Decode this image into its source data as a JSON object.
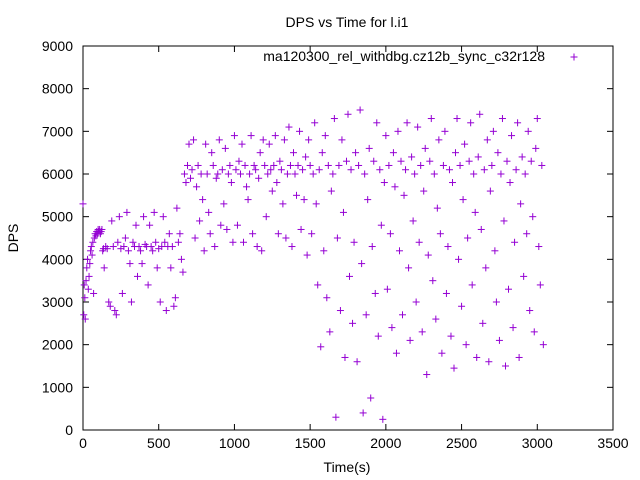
{
  "chart_data": {
    "type": "scatter",
    "title": "DPS vs Time for l.i1",
    "xlabel": "Time(s)",
    "ylabel": "DPS",
    "xlim": [
      0,
      3500
    ],
    "ylim": [
      0,
      9000
    ],
    "x_ticks": [
      0,
      500,
      1000,
      1500,
      2000,
      2500,
      3000,
      3500
    ],
    "y_ticks": [
      0,
      1000,
      2000,
      3000,
      4000,
      5000,
      6000,
      7000,
      8000,
      9000
    ],
    "grid": false,
    "legend_position": "top-right",
    "series_color": "#9400d3",
    "marker": "plus",
    "series": [
      {
        "name": "ma120300_rel_withdbg.cz12b_sync_c32r128",
        "points": [
          [
            0,
            5300
          ],
          [
            5,
            2700
          ],
          [
            8,
            3400
          ],
          [
            12,
            3100
          ],
          [
            15,
            2600
          ],
          [
            20,
            3500
          ],
          [
            25,
            3800
          ],
          [
            30,
            4000
          ],
          [
            35,
            3300
          ],
          [
            40,
            3600
          ],
          [
            45,
            3900
          ],
          [
            50,
            4200
          ],
          [
            55,
            4300
          ],
          [
            60,
            4100
          ],
          [
            65,
            4400
          ],
          [
            70,
            3200
          ],
          [
            75,
            4500
          ],
          [
            80,
            4600
          ],
          [
            85,
            4550
          ],
          [
            90,
            4650
          ],
          [
            95,
            4600
          ],
          [
            100,
            4700
          ],
          [
            105,
            4650
          ],
          [
            110,
            4700
          ],
          [
            115,
            4600
          ],
          [
            120,
            4650
          ],
          [
            125,
            4700
          ],
          [
            130,
            4200
          ],
          [
            135,
            4250
          ],
          [
            140,
            3800
          ],
          [
            150,
            4300
          ],
          [
            160,
            4250
          ],
          [
            170,
            3000
          ],
          [
            180,
            2900
          ],
          [
            190,
            4900
          ],
          [
            200,
            4300
          ],
          [
            210,
            2800
          ],
          [
            220,
            2700
          ],
          [
            230,
            4400
          ],
          [
            240,
            5000
          ],
          [
            250,
            4250
          ],
          [
            260,
            3200
          ],
          [
            270,
            4300
          ],
          [
            280,
            4500
          ],
          [
            290,
            5100
          ],
          [
            300,
            4200
          ],
          [
            310,
            3900
          ],
          [
            320,
            3000
          ],
          [
            330,
            4400
          ],
          [
            340,
            4300
          ],
          [
            350,
            4800
          ],
          [
            360,
            3600
          ],
          [
            370,
            4300
          ],
          [
            380,
            4200
          ],
          [
            390,
            3900
          ],
          [
            400,
            5000
          ],
          [
            410,
            4350
          ],
          [
            420,
            4300
          ],
          [
            430,
            3400
          ],
          [
            440,
            4800
          ],
          [
            450,
            4300
          ],
          [
            460,
            4200
          ],
          [
            470,
            5100
          ],
          [
            480,
            4400
          ],
          [
            490,
            3800
          ],
          [
            500,
            4250
          ],
          [
            510,
            3000
          ],
          [
            520,
            4300
          ],
          [
            530,
            5000
          ],
          [
            540,
            4400
          ],
          [
            550,
            2800
          ],
          [
            560,
            4300
          ],
          [
            570,
            4600
          ],
          [
            580,
            3800
          ],
          [
            590,
            4300
          ],
          [
            600,
            2900
          ],
          [
            610,
            3100
          ],
          [
            620,
            5200
          ],
          [
            630,
            4400
          ],
          [
            640,
            4600
          ],
          [
            650,
            4000
          ],
          [
            660,
            3700
          ],
          [
            670,
            6000
          ],
          [
            680,
            5800
          ],
          [
            690,
            6200
          ],
          [
            700,
            6700
          ],
          [
            710,
            5900
          ],
          [
            720,
            6100
          ],
          [
            730,
            6800
          ],
          [
            740,
            4500
          ],
          [
            750,
            5700
          ],
          [
            760,
            6200
          ],
          [
            770,
            4900
          ],
          [
            780,
            6000
          ],
          [
            790,
            5400
          ],
          [
            800,
            4200
          ],
          [
            810,
            6700
          ],
          [
            820,
            6000
          ],
          [
            830,
            5100
          ],
          [
            840,
            4600
          ],
          [
            850,
            6500
          ],
          [
            860,
            6200
          ],
          [
            870,
            4300
          ],
          [
            880,
            5900
          ],
          [
            890,
            6000
          ],
          [
            900,
            6800
          ],
          [
            910,
            4800
          ],
          [
            920,
            6100
          ],
          [
            930,
            5300
          ],
          [
            940,
            6600
          ],
          [
            950,
            4700
          ],
          [
            960,
            6000
          ],
          [
            970,
            6200
          ],
          [
            980,
            5800
          ],
          [
            990,
            4400
          ],
          [
            1000,
            6900
          ],
          [
            1010,
            6100
          ],
          [
            1020,
            4800
          ],
          [
            1030,
            6300
          ],
          [
            1040,
            6000
          ],
          [
            1050,
            6700
          ],
          [
            1060,
            4400
          ],
          [
            1070,
            6200
          ],
          [
            1080,
            5700
          ],
          [
            1090,
            5400
          ],
          [
            1100,
            6000
          ],
          [
            1110,
            6900
          ],
          [
            1120,
            4600
          ],
          [
            1130,
            6200
          ],
          [
            1140,
            6100
          ],
          [
            1150,
            4300
          ],
          [
            1160,
            5900
          ],
          [
            1170,
            6500
          ],
          [
            1180,
            4200
          ],
          [
            1190,
            6800
          ],
          [
            1200,
            6200
          ],
          [
            1210,
            5000
          ],
          [
            1220,
            6000
          ],
          [
            1230,
            6700
          ],
          [
            1240,
            6100
          ],
          [
            1250,
            5600
          ],
          [
            1260,
            6200
          ],
          [
            1270,
            6900
          ],
          [
            1280,
            5800
          ],
          [
            1290,
            4600
          ],
          [
            1300,
            6300
          ],
          [
            1310,
            6100
          ],
          [
            1320,
            5300
          ],
          [
            1330,
            6800
          ],
          [
            1340,
            4500
          ],
          [
            1350,
            6000
          ],
          [
            1360,
            7100
          ],
          [
            1370,
            6200
          ],
          [
            1380,
            4300
          ],
          [
            1390,
            6500
          ],
          [
            1400,
            6000
          ],
          [
            1410,
            5500
          ],
          [
            1420,
            6200
          ],
          [
            1430,
            7000
          ],
          [
            1440,
            4700
          ],
          [
            1450,
            6100
          ],
          [
            1460,
            5400
          ],
          [
            1470,
            6400
          ],
          [
            1480,
            4100
          ],
          [
            1490,
            6800
          ],
          [
            1500,
            6200
          ],
          [
            1510,
            4600
          ],
          [
            1520,
            6000
          ],
          [
            1530,
            7200
          ],
          [
            1540,
            5300
          ],
          [
            1550,
            3400
          ],
          [
            1560,
            6100
          ],
          [
            1570,
            1950
          ],
          [
            1580,
            6500
          ],
          [
            1590,
            4200
          ],
          [
            1600,
            6900
          ],
          [
            1610,
            3100
          ],
          [
            1620,
            6200
          ],
          [
            1630,
            2300
          ],
          [
            1640,
            5600
          ],
          [
            1650,
            6000
          ],
          [
            1660,
            7300
          ],
          [
            1670,
            300
          ],
          [
            1680,
            4500
          ],
          [
            1690,
            6200
          ],
          [
            1700,
            2800
          ],
          [
            1710,
            6800
          ],
          [
            1720,
            5100
          ],
          [
            1730,
            1700
          ],
          [
            1740,
            6300
          ],
          [
            1750,
            7400
          ],
          [
            1760,
            3600
          ],
          [
            1770,
            6100
          ],
          [
            1780,
            2500
          ],
          [
            1790,
            4400
          ],
          [
            1800,
            6500
          ],
          [
            1810,
            1600
          ],
          [
            1820,
            6200
          ],
          [
            1830,
            7500
          ],
          [
            1840,
            3900
          ],
          [
            1850,
            400
          ],
          [
            1860,
            6000
          ],
          [
            1870,
            2700
          ],
          [
            1880,
            5400
          ],
          [
            1890,
            6600
          ],
          [
            1900,
            750
          ],
          [
            1910,
            4300
          ],
          [
            1920,
            6300
          ],
          [
            1930,
            3200
          ],
          [
            1940,
            7200
          ],
          [
            1950,
            2200
          ],
          [
            1960,
            6100
          ],
          [
            1970,
            4800
          ],
          [
            1980,
            250
          ],
          [
            1990,
            5800
          ],
          [
            2000,
            6900
          ],
          [
            2010,
            3300
          ],
          [
            2020,
            6200
          ],
          [
            2030,
            4600
          ],
          [
            2040,
            2400
          ],
          [
            2050,
            6500
          ],
          [
            2060,
            5700
          ],
          [
            2070,
            1800
          ],
          [
            2080,
            7000
          ],
          [
            2090,
            4200
          ],
          [
            2100,
            6300
          ],
          [
            2110,
            2700
          ],
          [
            2120,
            5500
          ],
          [
            2130,
            6100
          ],
          [
            2140,
            7200
          ],
          [
            2150,
            3800
          ],
          [
            2160,
            2100
          ],
          [
            2170,
            6400
          ],
          [
            2180,
            4900
          ],
          [
            2190,
            6000
          ],
          [
            2200,
            3000
          ],
          [
            2210,
            7100
          ],
          [
            2220,
            4400
          ],
          [
            2230,
            6200
          ],
          [
            2240,
            2300
          ],
          [
            2250,
            5600
          ],
          [
            2260,
            6600
          ],
          [
            2270,
            1300
          ],
          [
            2280,
            4100
          ],
          [
            2290,
            6300
          ],
          [
            2300,
            7300
          ],
          [
            2310,
            3500
          ],
          [
            2320,
            6000
          ],
          [
            2330,
            2600
          ],
          [
            2340,
            5200
          ],
          [
            2350,
            6800
          ],
          [
            2360,
            4600
          ],
          [
            2370,
            1800
          ],
          [
            2380,
            6200
          ],
          [
            2390,
            7000
          ],
          [
            2400,
            3200
          ],
          [
            2410,
            4300
          ],
          [
            2420,
            6100
          ],
          [
            2430,
            2200
          ],
          [
            2440,
            5800
          ],
          [
            2450,
            1450
          ],
          [
            2460,
            6500
          ],
          [
            2470,
            7300
          ],
          [
            2480,
            4000
          ],
          [
            2490,
            6200
          ],
          [
            2500,
            2900
          ],
          [
            2510,
            5400
          ],
          [
            2520,
            6700
          ],
          [
            2530,
            2000
          ],
          [
            2540,
            4500
          ],
          [
            2550,
            6300
          ],
          [
            2560,
            7200
          ],
          [
            2570,
            3400
          ],
          [
            2580,
            6000
          ],
          [
            2590,
            5100
          ],
          [
            2600,
            1700
          ],
          [
            2610,
            6400
          ],
          [
            2620,
            7400
          ],
          [
            2630,
            4700
          ],
          [
            2640,
            2500
          ],
          [
            2650,
            6100
          ],
          [
            2660,
            3800
          ],
          [
            2670,
            6800
          ],
          [
            2680,
            1600
          ],
          [
            2690,
            5600
          ],
          [
            2700,
            6200
          ],
          [
            2710,
            7000
          ],
          [
            2720,
            4200
          ],
          [
            2730,
            3000
          ],
          [
            2740,
            6500
          ],
          [
            2750,
            2100
          ],
          [
            2760,
            6000
          ],
          [
            2770,
            7300
          ],
          [
            2780,
            4900
          ],
          [
            2790,
            1500
          ],
          [
            2800,
            6300
          ],
          [
            2810,
            3300
          ],
          [
            2820,
            5800
          ],
          [
            2830,
            6900
          ],
          [
            2840,
            2400
          ],
          [
            2850,
            4400
          ],
          [
            2860,
            6100
          ],
          [
            2870,
            7200
          ],
          [
            2880,
            1700
          ],
          [
            2890,
            5300
          ],
          [
            2900,
            6400
          ],
          [
            2910,
            3600
          ],
          [
            2920,
            6000
          ],
          [
            2930,
            4600
          ],
          [
            2940,
            7000
          ],
          [
            2950,
            2800
          ],
          [
            2960,
            6300
          ],
          [
            2970,
            5000
          ],
          [
            2980,
            2300
          ],
          [
            2990,
            6600
          ],
          [
            3000,
            7300
          ],
          [
            3010,
            4300
          ],
          [
            3020,
            3400
          ],
          [
            3030,
            6200
          ],
          [
            3040,
            2000
          ]
        ]
      }
    ]
  }
}
